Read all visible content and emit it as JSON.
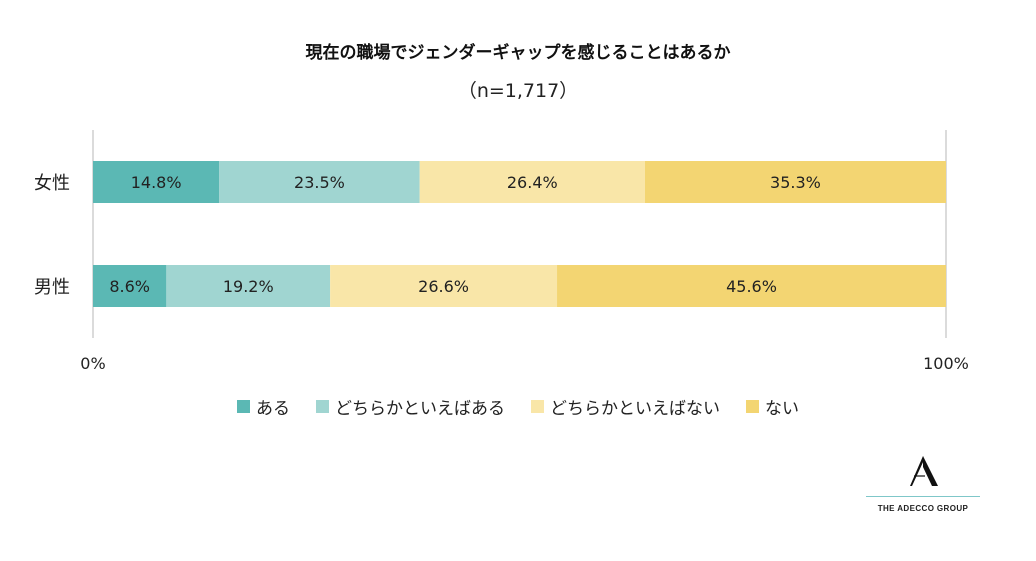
{
  "chart_data": {
    "type": "bar",
    "orientation": "horizontal-stacked-100",
    "title": "現在の職場でジェンダーギャップを感じることはあるか",
    "subtitle": "（n=1,717）",
    "categories": [
      "女性",
      "男性"
    ],
    "series": [
      {
        "name": "ある",
        "color": "#5bb8b4",
        "values": [
          14.8,
          8.6
        ]
      },
      {
        "name": "どちらかといえばある",
        "color": "#a0d5d1",
        "values": [
          23.5,
          19.2
        ]
      },
      {
        "name": "どちらかといえばない",
        "color": "#f9e6a8",
        "values": [
          26.4,
          26.6
        ]
      },
      {
        "name": "ない",
        "color": "#f3d572",
        "values": [
          35.3,
          45.6
        ]
      }
    ],
    "value_suffix": "%",
    "xlim": [
      0,
      100
    ],
    "tick_labels": [
      "0%",
      "100%"
    ],
    "legend_position": "bottom"
  },
  "logo": {
    "text": "THE ADECCO GROUP",
    "mark": "A"
  }
}
